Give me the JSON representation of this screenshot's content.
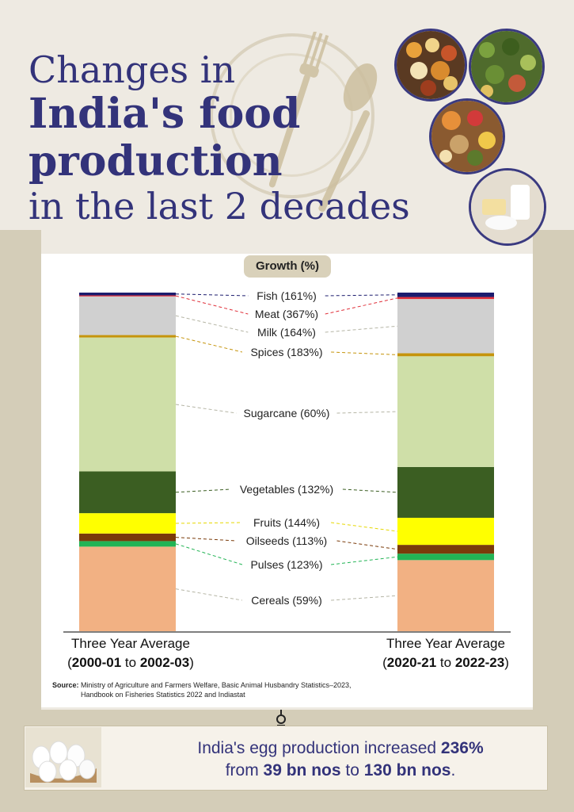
{
  "title": {
    "line1": "Changes in",
    "line2": "India's food",
    "line3": "production",
    "line4": "in the last 2 decades"
  },
  "legend_title": "Growth (%)",
  "colors": {
    "title": "#33337a",
    "frame": "#d4cdb8"
  },
  "chart_data": {
    "type": "bar",
    "stacked": true,
    "normalized": true,
    "title": "Growth (%)",
    "categories": [
      "Three Year Average (2000-01 to 2002-03)",
      "Three Year Average (2020-21 to 2022-23)"
    ],
    "series": [
      {
        "name": "Cereals",
        "label": "Cereals (59%)",
        "growth": 59,
        "color": "#f2b183",
        "values": [
          24.5,
          21.0
        ]
      },
      {
        "name": "Pulses",
        "label": "Pulses (123%)",
        "growth": 123,
        "color": "#22b455",
        "values": [
          1.6,
          1.9
        ]
      },
      {
        "name": "Oilseeds",
        "label": "Oilseeds (113%)",
        "growth": 113,
        "color": "#7a3b0a",
        "values": [
          2.2,
          2.6
        ]
      },
      {
        "name": "Fruits",
        "label": "Fruits (144%)",
        "growth": 144,
        "color": "#ffff00",
        "values": [
          5.9,
          8.0
        ]
      },
      {
        "name": "Vegetables",
        "label": "Vegetables (132%)",
        "growth": 132,
        "color": "#3b5e22",
        "values": [
          12.1,
          15.0
        ]
      },
      {
        "name": "Sugarcane",
        "label": "Sugarcane (60%)",
        "growth": 60,
        "color": "#cfdfa8",
        "values": [
          38.8,
          32.7
        ]
      },
      {
        "name": "Spices",
        "label": "Spices (183%)",
        "growth": 183,
        "color": "#c5940c",
        "values": [
          0.7,
          0.9
        ]
      },
      {
        "name": "Milk",
        "label": "Milk (164%)",
        "growth": 164,
        "color": "#d0d0d0",
        "values": [
          11.2,
          16.0
        ]
      },
      {
        "name": "Meat",
        "label": "Meat (367%)",
        "growth": 367,
        "color": "#e0303a",
        "values": [
          0.3,
          0.6
        ]
      },
      {
        "name": "Fish",
        "label": "Fish (161%)",
        "growth": 161,
        "color": "#1c1c6e",
        "values": [
          0.8,
          1.3
        ]
      }
    ],
    "ylim": [
      0,
      100
    ],
    "axis_labels": [
      {
        "top": "Three Year Average",
        "start": "2000-01",
        "to": "to",
        "end": "2002-03"
      },
      {
        "top": "Three Year Average",
        "start": "2020-21",
        "to": "to",
        "end": "2022-23"
      }
    ]
  },
  "source": {
    "label": "Source:",
    "line1": "Ministry of Agriculture and Farmers Welfare, Basic Animal Husbandry Statistics–2023,",
    "line2": "Handbook on Fisheries Statistics 2022 and Indiastat"
  },
  "egg": {
    "part1": "India's egg production  increased ",
    "pct": "236%",
    "part2": "from ",
    "from": "39 bn nos",
    "to_word": " to ",
    "to": "130 bn nos",
    "end": "."
  },
  "images": [
    "thali-photo",
    "vegetables-photo",
    "fruits-nuts-photo",
    "dairy-photo",
    "eggs-photo"
  ]
}
